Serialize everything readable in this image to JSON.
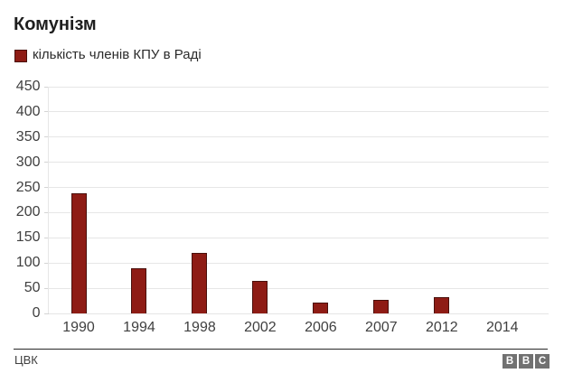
{
  "title": "Комунізм",
  "legend": {
    "label": "кількість членів КПУ в Раді",
    "swatch_color": "#8e1c15"
  },
  "chart_data": {
    "type": "bar",
    "title": "Комунізм",
    "series_name": "кількість членів КПУ в Раді",
    "categories": [
      "1990",
      "1994",
      "1998",
      "2002",
      "2006",
      "2007",
      "2012",
      "2014"
    ],
    "values": [
      239,
      90,
      121,
      65,
      21,
      27,
      32,
      0
    ],
    "xlabel": "",
    "ylabel": "",
    "ylim": [
      0,
      450
    ],
    "ytick_step": 50,
    "grid": true,
    "legend_position": "top-left",
    "bar_color": "#8e1c15"
  },
  "footer": {
    "source": "ЦВК",
    "logo_letters": [
      "B",
      "B",
      "C"
    ]
  }
}
